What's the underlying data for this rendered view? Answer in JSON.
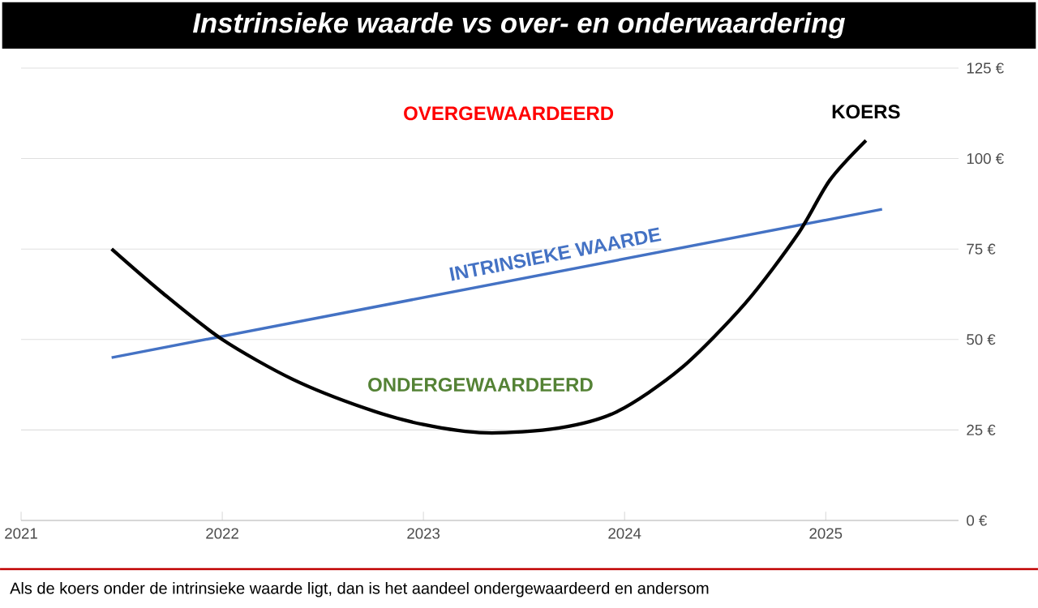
{
  "chart_data": {
    "type": "line",
    "title": "Instrinsieke waarde vs over- en onderwaardering",
    "series": [
      {
        "name": "INTRINSIEKE WAARDE",
        "color": "#4472c4",
        "x": [
          2021.45,
          2025.28
        ],
        "values": [
          45,
          86
        ]
      },
      {
        "name": "KOERS",
        "color": "#000000",
        "x": [
          2021.45,
          2021.7,
          2022.0,
          2022.35,
          2022.71,
          2023.0,
          2023.31,
          2023.67,
          2023.96,
          2024.28,
          2024.6,
          2024.86,
          2025.02,
          2025.2
        ],
        "values": [
          75,
          63,
          50,
          39,
          31,
          26.5,
          24.2,
          25.5,
          30,
          42,
          60,
          79,
          94,
          105
        ]
      }
    ],
    "xlim": [
      2021,
      2025.66
    ],
    "ylim": [
      0,
      125
    ],
    "xticks": [
      2021,
      2022,
      2023,
      2024,
      2025
    ],
    "yticks": [
      {
        "value": 0,
        "label": "0 €"
      },
      {
        "value": 25,
        "label": "25 €"
      },
      {
        "value": 50,
        "label": "50 €"
      },
      {
        "value": 75,
        "label": "75 €"
      },
      {
        "value": 100,
        "label": "100 €"
      },
      {
        "value": 125,
        "label": "125 €"
      }
    ],
    "grid": "y",
    "annotations": [
      "OVERGEWAARDEERD",
      "ONDERGEWAARDEERD",
      "Als de koers onder de intrinsieke waarde ligt, dan is het aandeel ondergewaardeerd en andersom"
    ]
  }
}
